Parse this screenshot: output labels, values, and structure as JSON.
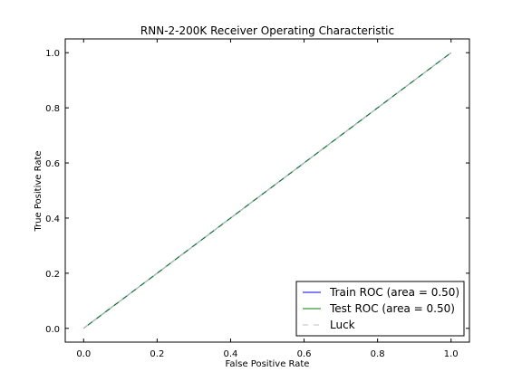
{
  "chart_data": {
    "type": "line",
    "title": "RNN-2-200K Receiver Operating Characteristic",
    "xlabel": "False Positive Rate",
    "ylabel": "True Positive Rate",
    "xlim": [
      -0.05,
      1.05
    ],
    "ylim": [
      -0.05,
      1.05
    ],
    "x_ticks": [
      0.0,
      0.2,
      0.4,
      0.6,
      0.8,
      1.0
    ],
    "x_tick_labels": [
      "0.0",
      "0.2",
      "0.4",
      "0.6",
      "0.8",
      "1.0"
    ],
    "y_ticks": [
      0.0,
      0.2,
      0.4,
      0.6,
      0.8,
      1.0
    ],
    "y_tick_labels": [
      "0.0",
      "0.2",
      "0.4",
      "0.6",
      "0.8",
      "1.0"
    ],
    "grid": false,
    "legend_position": "lower-right",
    "series": [
      {
        "name": "Train ROC (area = 0.50)",
        "x": [
          0.0,
          1.0
        ],
        "y": [
          0.0,
          1.0
        ],
        "color": "#0000ff",
        "style": "solid"
      },
      {
        "name": "Test ROC (area = 0.50)",
        "x": [
          0.0,
          1.0
        ],
        "y": [
          0.0,
          1.0
        ],
        "color": "#008000",
        "style": "solid"
      },
      {
        "name": "Luck",
        "x": [
          0.0,
          1.0
        ],
        "y": [
          0.0,
          1.0
        ],
        "color": "#bfbfbf",
        "style": "dashed"
      }
    ]
  }
}
